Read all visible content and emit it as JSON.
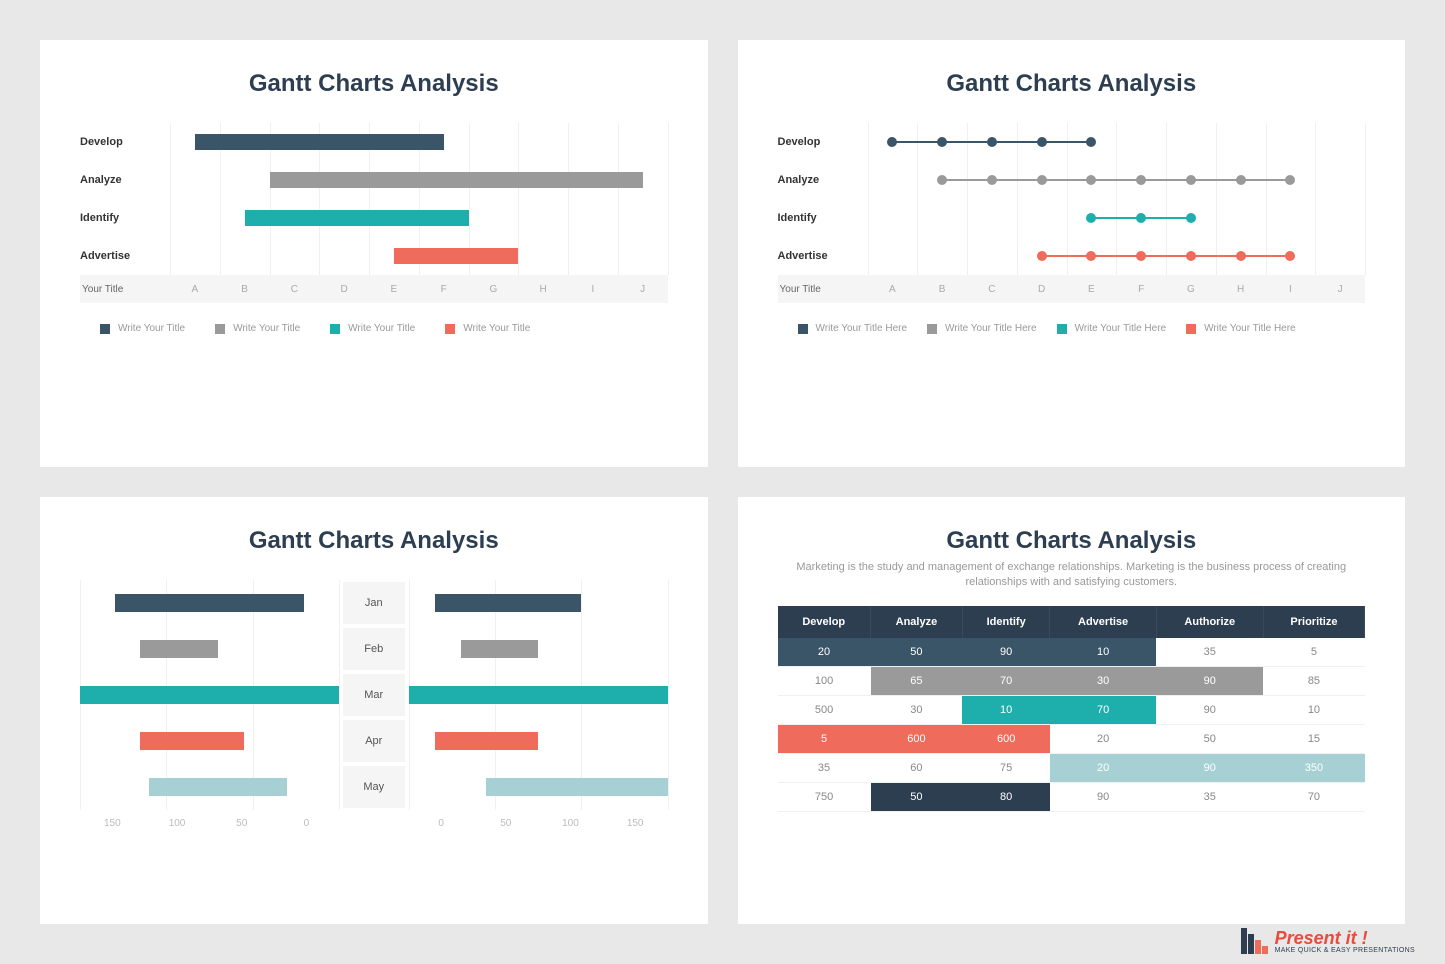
{
  "colors": {
    "navy": "#3b5568",
    "gray": "#9a9a9a",
    "teal": "#1eafac",
    "coral": "#ef6b5b",
    "lightteal": "#a6d0d4",
    "darknavy": "#2c3e50",
    "bg": "#e8e8e8",
    "panel": "#ffffff",
    "axis_bg": "#f5f5f5",
    "gridline": "#f0f0f0",
    "text_dark": "#2c3e50",
    "text_muted": "#999999"
  },
  "panel1": {
    "title": "Gantt Charts Analysis",
    "rows": [
      {
        "label": "Develop",
        "start": 0.5,
        "end": 5.5,
        "color": "#3b5568"
      },
      {
        "label": "Analyze",
        "start": 2.0,
        "end": 9.5,
        "color": "#9a9a9a"
      },
      {
        "label": "Identify",
        "start": 1.5,
        "end": 6.0,
        "color": "#1eafac"
      },
      {
        "label": "Advertise",
        "start": 4.5,
        "end": 7.0,
        "color": "#ef6b5b"
      }
    ],
    "axis_label": "Your Title",
    "columns": [
      "A",
      "B",
      "C",
      "D",
      "E",
      "F",
      "G",
      "H",
      "I",
      "J"
    ],
    "legend": [
      {
        "color": "#3b5568",
        "label": "Write Your Title"
      },
      {
        "color": "#9a9a9a",
        "label": "Write Your Title"
      },
      {
        "color": "#1eafac",
        "label": "Write Your Title"
      },
      {
        "color": "#ef6b5b",
        "label": "Write Your Title"
      }
    ]
  },
  "panel2": {
    "title": "Gantt Charts Analysis",
    "rows": [
      {
        "label": "Develop",
        "dots": [
          0.5,
          1.5,
          2.5,
          3.5,
          4.5
        ],
        "color": "#3b5568"
      },
      {
        "label": "Analyze",
        "dots": [
          1.5,
          2.5,
          3.5,
          4.5,
          5.5,
          6.5,
          7.5,
          8.5
        ],
        "color": "#9a9a9a"
      },
      {
        "label": "Identify",
        "dots": [
          4.5,
          5.5,
          6.5
        ],
        "color": "#1eafac"
      },
      {
        "label": "Advertise",
        "dots": [
          3.5,
          4.5,
          5.5,
          6.5,
          7.5,
          8.5
        ],
        "color": "#ef6b5b"
      }
    ],
    "axis_label": "Your Title",
    "columns": [
      "A",
      "B",
      "C",
      "D",
      "E",
      "F",
      "G",
      "H",
      "I",
      "J"
    ],
    "legend": [
      {
        "color": "#3b5568",
        "label": "Write Your Title Here"
      },
      {
        "color": "#9a9a9a",
        "label": "Write Your Title Here"
      },
      {
        "color": "#1eafac",
        "label": "Write Your Title Here"
      },
      {
        "color": "#ef6b5b",
        "label": "Write Your Title Here"
      }
    ]
  },
  "panel3": {
    "title": "Gantt Charts Analysis",
    "months": [
      "Jan",
      "Feb",
      "Mar",
      "Apr",
      "May"
    ],
    "left_max": 150,
    "right_max": 150,
    "rows": [
      {
        "left_start": 20,
        "left_end": 130,
        "left_color": "#3b5568",
        "right_start": 15,
        "right_end": 100,
        "right_color": "#3b5568"
      },
      {
        "left_start": 70,
        "left_end": 115,
        "left_color": "#9a9a9a",
        "right_start": 30,
        "right_end": 75,
        "right_color": "#9a9a9a"
      },
      {
        "left_start": 0,
        "left_end": 150,
        "left_color": "#1eafac",
        "right_start": 0,
        "right_end": 150,
        "right_color": "#1eafac"
      },
      {
        "left_start": 55,
        "left_end": 115,
        "left_color": "#ef6b5b",
        "right_start": 15,
        "right_end": 75,
        "right_color": "#ef6b5b"
      },
      {
        "left_start": 30,
        "left_end": 110,
        "left_color": "#a6d0d4",
        "right_start": 45,
        "right_end": 150,
        "right_color": "#a6d0d4"
      }
    ],
    "axis_left": [
      "150",
      "100",
      "50",
      "0"
    ],
    "axis_right": [
      "0",
      "50",
      "100",
      "150"
    ]
  },
  "panel4": {
    "title": "Gantt Charts Analysis",
    "subtitle": "Marketing is the study and management of exchange relationships. Marketing is the business process of creating relationships with and satisfying customers.",
    "headers": [
      "Develop",
      "Analyze",
      "Identify",
      "Advertise",
      "Authorize",
      "Prioritize"
    ],
    "rows": [
      {
        "cells": [
          "20",
          "50",
          "90",
          "10",
          "35",
          "5"
        ],
        "fills": [
          "#3b5568",
          "#3b5568",
          "#3b5568",
          "#3b5568",
          null,
          null
        ]
      },
      {
        "cells": [
          "100",
          "65",
          "70",
          "30",
          "90",
          "85"
        ],
        "fills": [
          null,
          "#9a9a9a",
          "#9a9a9a",
          "#9a9a9a",
          "#9a9a9a",
          null
        ]
      },
      {
        "cells": [
          "500",
          "30",
          "10",
          "70",
          "90",
          "10"
        ],
        "fills": [
          null,
          null,
          "#1eafac",
          "#1eafac",
          null,
          null
        ]
      },
      {
        "cells": [
          "5",
          "600",
          "600",
          "20",
          "50",
          "15"
        ],
        "fills": [
          "#ef6b5b",
          "#ef6b5b",
          "#ef6b5b",
          null,
          null,
          null
        ]
      },
      {
        "cells": [
          "35",
          "60",
          "75",
          "20",
          "90",
          "350"
        ],
        "fills": [
          null,
          null,
          null,
          "#a6d0d4",
          "#a6d0d4",
          "#a6d0d4"
        ]
      },
      {
        "cells": [
          "750",
          "50",
          "80",
          "90",
          "35",
          "70"
        ],
        "fills": [
          null,
          "#2c3e50",
          "#2c3e50",
          null,
          null,
          null
        ]
      }
    ]
  },
  "logo": {
    "title": "Present it !",
    "subtitle": "MAKE QUICK & EASY PRESENTATIONS",
    "bars": [
      {
        "color": "#2c3e50",
        "h": 26,
        "x": 0
      },
      {
        "color": "#2c3e50",
        "h": 20,
        "x": 7
      },
      {
        "color": "#ef6b5b",
        "h": 14,
        "x": 14
      },
      {
        "color": "#ef6b5b",
        "h": 8,
        "x": 21
      }
    ]
  }
}
